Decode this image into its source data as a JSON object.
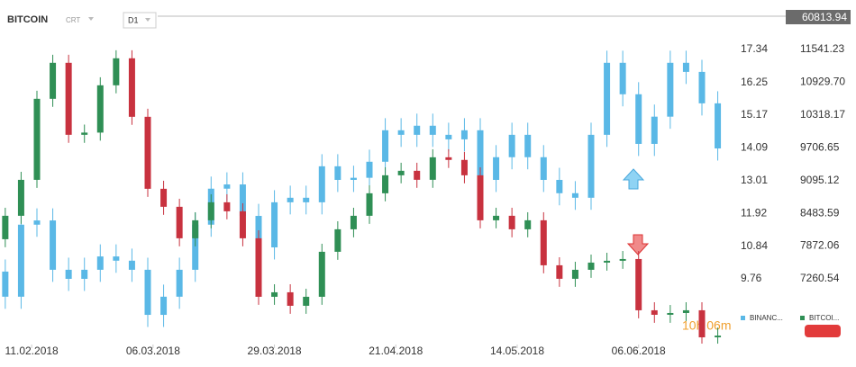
{
  "chart_data": {
    "type": "candlestick",
    "title": "BITCOIN",
    "subtitle": "CRT",
    "timeframe": "D1",
    "last_price": "60813.94",
    "countdown": "10h 06m",
    "x": [
      "2018-02-06",
      "2018-02-09",
      "2018-02-12",
      "2018-02-15",
      "2018-02-18",
      "2018-02-21",
      "2018-02-24",
      "2018-02-27",
      "2018-03-02",
      "2018-03-05",
      "2018-03-08",
      "2018-03-11",
      "2018-03-14",
      "2018-03-17",
      "2018-03-20",
      "2018-03-23",
      "2018-03-26",
      "2018-03-29",
      "2018-04-01",
      "2018-04-04",
      "2018-04-07",
      "2018-04-10",
      "2018-04-13",
      "2018-04-16",
      "2018-04-19",
      "2018-04-22",
      "2018-04-25",
      "2018-04-28",
      "2018-05-01",
      "2018-05-04",
      "2018-05-07",
      "2018-05-10",
      "2018-05-13",
      "2018-05-16",
      "2018-05-19",
      "2018-05-22",
      "2018-05-25",
      "2018-05-28",
      "2018-05-31",
      "2018-06-03",
      "2018-06-06",
      "2018-06-09",
      "2018-06-12",
      "2018-06-15",
      "2018-06-18",
      "2018-06-21"
    ],
    "xlim": [
      "2018-02-05",
      "2018-06-25"
    ],
    "xticks": [
      {
        "value": "2018-02-11",
        "label": "11.02.2018"
      },
      {
        "value": "2018-03-06",
        "label": "06.03.2018"
      },
      {
        "value": "2018-03-29",
        "label": "29.03.2018"
      },
      {
        "value": "2018-04-21",
        "label": "21.04.2018"
      },
      {
        "value": "2018-05-14",
        "label": "14.05.2018"
      },
      {
        "value": "2018-06-06",
        "label": "06.06.2018"
      }
    ],
    "ylim": [
      7.59,
      18.44
    ],
    "yticks": [
      9.76,
      10.84,
      11.92,
      13.01,
      14.09,
      15.17,
      16.25,
      17.34
    ],
    "y2lim": [
      6034,
      12163
    ],
    "y2ticks": [
      7260.54,
      7872.06,
      8483.59,
      9095.12,
      9706.65,
      10318.17,
      {
        "value": 10929.7,
        "label": "10929.70"
      },
      11541.23
    ],
    "grid": false,
    "up_color": "#2f8f55",
    "down_color": "#c8323f",
    "series": [
      {
        "name": "BINANC...",
        "color": "#5ab8e6",
        "axis": "y",
        "values": [
          [
            10.0,
            10.4,
            8.77,
            9.17
          ],
          [
            9.17,
            11.95,
            8.77,
            11.55
          ],
          [
            11.55,
            12.09,
            11.15,
            11.69
          ],
          [
            11.69,
            12.09,
            9.66,
            10.06
          ],
          [
            10.06,
            10.46,
            9.36,
            9.76
          ],
          [
            9.76,
            10.46,
            9.36,
            10.06
          ],
          [
            10.06,
            10.9,
            9.66,
            10.5
          ],
          [
            10.5,
            10.9,
            9.96,
            10.36
          ],
          [
            10.36,
            10.76,
            9.66,
            10.06
          ],
          [
            10.06,
            10.46,
            8.17,
            8.57
          ],
          [
            8.57,
            9.57,
            8.17,
            9.17
          ],
          [
            9.17,
            10.46,
            8.77,
            10.06
          ],
          [
            10.06,
            11.95,
            9.66,
            11.55
          ],
          [
            11.55,
            13.14,
            11.15,
            12.74
          ],
          [
            12.74,
            13.28,
            12.34,
            12.88
          ],
          [
            12.88,
            13.28,
            11.44,
            11.84
          ],
          [
            11.84,
            12.24,
            10.4,
            10.8
          ],
          [
            10.8,
            12.69,
            10.4,
            12.29
          ],
          [
            12.29,
            12.84,
            11.89,
            12.44
          ],
          [
            12.44,
            12.84,
            11.89,
            12.29
          ],
          [
            12.29,
            13.88,
            11.89,
            13.48
          ],
          [
            13.48,
            13.88,
            12.63,
            13.03
          ],
          [
            13.03,
            13.5,
            12.63,
            13.1
          ],
          [
            13.1,
            14.03,
            12.7,
            13.63
          ],
          [
            13.63,
            15.07,
            13.23,
            14.67
          ],
          [
            14.67,
            15.07,
            14.12,
            14.52
          ],
          [
            14.52,
            15.22,
            14.12,
            14.82
          ],
          [
            14.82,
            15.22,
            14.12,
            14.52
          ],
          [
            14.52,
            14.92,
            13.97,
            14.37
          ],
          [
            14.37,
            15.07,
            13.97,
            14.67
          ],
          [
            14.67,
            15.07,
            12.63,
            13.03
          ],
          [
            13.03,
            14.18,
            12.63,
            13.78
          ],
          [
            13.78,
            14.92,
            13.38,
            14.52
          ],
          [
            14.52,
            14.92,
            13.38,
            13.78
          ],
          [
            13.78,
            14.18,
            12.63,
            13.03
          ],
          [
            13.03,
            13.43,
            12.19,
            12.59
          ],
          [
            12.59,
            12.99,
            12.04,
            12.44
          ],
          [
            12.44,
            14.92,
            12.04,
            14.52
          ],
          [
            14.52,
            17.3,
            14.12,
            16.9
          ],
          [
            16.9,
            17.3,
            15.46,
            15.86
          ],
          [
            15.86,
            16.26,
            13.82,
            14.22
          ],
          [
            14.22,
            15.52,
            13.82,
            15.12
          ],
          [
            15.12,
            17.3,
            14.72,
            16.9
          ],
          [
            16.9,
            17.3,
            16.2,
            16.6
          ],
          [
            16.6,
            17.0,
            15.16,
            15.56
          ],
          [
            15.56,
            15.96,
            13.67,
            14.07
          ]
        ]
      },
      {
        "name": "BITCOI...",
        "color": "#2f8f55",
        "axis": "y2",
        "values": [
          [
            8000,
            8587,
            7850,
            8437
          ],
          [
            8437,
            9258,
            8287,
            9108
          ],
          [
            9108,
            10771,
            8958,
            10621
          ],
          [
            10621,
            11443,
            10471,
            11293
          ],
          [
            11293,
            11443,
            9799,
            9949
          ],
          [
            9949,
            10140,
            9799,
            9990
          ],
          [
            9990,
            11023,
            9840,
            10873
          ],
          [
            10873,
            11527,
            10723,
            11377
          ],
          [
            11377,
            11527,
            10135,
            10285
          ],
          [
            10285,
            10435,
            8791,
            8941
          ],
          [
            8941,
            9091,
            8455,
            8605
          ],
          [
            8605,
            8755,
            7867,
            8017
          ],
          [
            8017,
            8503,
            7867,
            8353
          ],
          [
            8353,
            8839,
            8203,
            8689
          ],
          [
            8689,
            8839,
            8371,
            8521
          ],
          [
            8521,
            8671,
            7867,
            8017
          ],
          [
            8017,
            8167,
            6775,
            6925
          ],
          [
            6925,
            7159,
            6775,
            7009
          ],
          [
            7009,
            7159,
            6607,
            6757
          ],
          [
            6757,
            7075,
            6607,
            6925
          ],
          [
            6925,
            7915,
            6775,
            7765
          ],
          [
            7765,
            8335,
            7615,
            8185
          ],
          [
            8185,
            8587,
            8035,
            8437
          ],
          [
            8437,
            9007,
            8287,
            8857
          ],
          [
            8857,
            9343,
            8707,
            9193
          ],
          [
            9193,
            9427,
            9043,
            9277
          ],
          [
            9277,
            9427,
            8959,
            9109
          ],
          [
            9109,
            9679,
            8959,
            9529
          ],
          [
            9529,
            9679,
            9330,
            9480
          ],
          [
            9480,
            9630,
            9043,
            9193
          ],
          [
            9193,
            9343,
            8203,
            8353
          ],
          [
            8353,
            8587,
            8203,
            8437
          ],
          [
            8437,
            8587,
            8035,
            8185
          ],
          [
            8185,
            8503,
            8035,
            8353
          ],
          [
            8353,
            8503,
            7363,
            7513
          ],
          [
            7513,
            7663,
            7111,
            7261
          ],
          [
            7261,
            7579,
            7111,
            7429
          ],
          [
            7429,
            7713,
            7279,
            7563
          ],
          [
            7563,
            7747,
            7413,
            7597
          ],
          [
            7597,
            7780,
            7447,
            7630
          ],
          [
            7630,
            7780,
            6523,
            6673
          ],
          [
            6673,
            6823,
            6439,
            6589
          ],
          [
            6589,
            6772,
            6439,
            6622
          ],
          [
            6622,
            6823,
            6472,
            6673
          ],
          [
            6673,
            6823,
            6050,
            6168
          ],
          [
            6168,
            6350,
            6050,
            6200
          ]
        ]
      }
    ]
  }
}
